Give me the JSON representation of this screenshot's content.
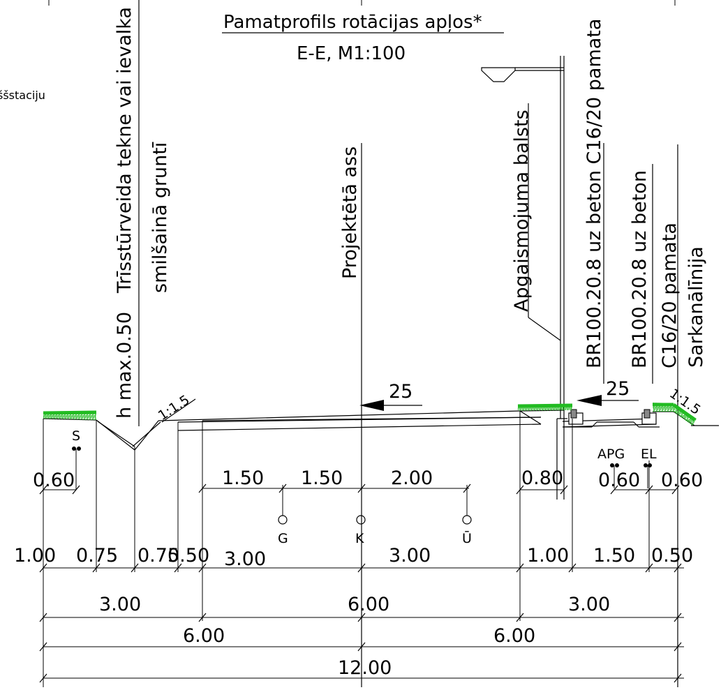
{
  "title": "Pamatprofils rotācijas apļos*",
  "subtitle": "E-E,  M1:100",
  "corner_text": "ššstaciju",
  "vertical_labels": {
    "tekne_line1": "Trīsstūrveida tekne vai ievalka",
    "tekne_line2": "smilšainā gruntī",
    "h_max": "h max.0.50",
    "axis": "Projektētā ass",
    "light_pole": "Apgaismojuma balsts",
    "curb1": "BR100.20.8 uz beton C16/20 pamata",
    "curb2_line1": "BR100.20.8 uz beton",
    "curb2_line2": "C16/20 pamata",
    "red_line": "Sarkanālīnija"
  },
  "slopes": {
    "left": "1:1.5",
    "right": "1:1.5"
  },
  "gradients": {
    "main": "25",
    "side": "25"
  },
  "utilities": {
    "S": "S",
    "G": "G",
    "K": "K",
    "U": "Ū",
    "APG": "APG",
    "EL": "EL"
  },
  "dims": {
    "row1": [
      "0.60",
      "1.50",
      "1.50",
      "2.00",
      "0.80",
      "0.60",
      "0.60"
    ],
    "row2": [
      "1.00",
      "0.75",
      "0.75",
      "0.50",
      "3.00",
      "3.00",
      "1.00",
      "1.50",
      "0.50"
    ],
    "row3": [
      "3.00",
      "6.00",
      "3.00"
    ],
    "row4": [
      "6.00",
      "6.00"
    ],
    "row5": [
      "12.00"
    ]
  },
  "colors": {
    "grass": "#22bb22",
    "line": "#000000"
  }
}
